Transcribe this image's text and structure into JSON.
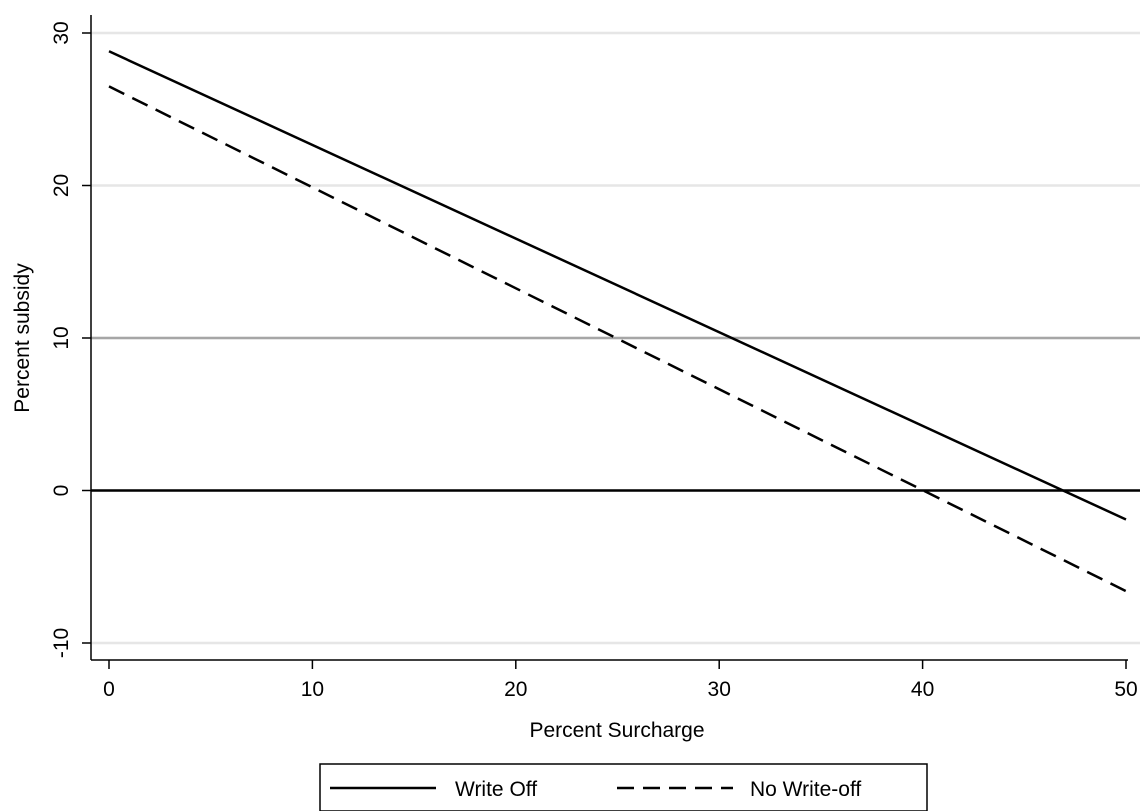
{
  "chart_data": {
    "type": "line",
    "title": "",
    "xlabel": "Percent Surcharge",
    "ylabel": "Percent subsidy",
    "xlim": [
      0,
      50
    ],
    "ylim": [
      -10,
      30
    ],
    "x_ticks": [
      0,
      10,
      20,
      30,
      40,
      50
    ],
    "y_ticks": [
      -10,
      0,
      10,
      20,
      30
    ],
    "x_tick_labels": [
      "0",
      "10",
      "20",
      "30",
      "40",
      "50"
    ],
    "y_tick_labels": [
      "-10",
      "0",
      "10",
      "20",
      "30"
    ],
    "grid": "horizontal",
    "reference_lines": [
      {
        "y": 0,
        "color": "#000000"
      },
      {
        "y": 10,
        "color": "#a6a6a6"
      }
    ],
    "legend_position": "bottom-center",
    "series": [
      {
        "name": "Write Off",
        "style": "solid",
        "color": "#000000",
        "x": [
          0,
          50
        ],
        "y": [
          28.8,
          -1.9
        ]
      },
      {
        "name": "No Write-off",
        "style": "dashed",
        "color": "#000000",
        "x": [
          0,
          50
        ],
        "y": [
          26.5,
          -6.6
        ]
      }
    ],
    "colors": {
      "grid": "#e6e6e6",
      "axis": "#000000"
    }
  }
}
